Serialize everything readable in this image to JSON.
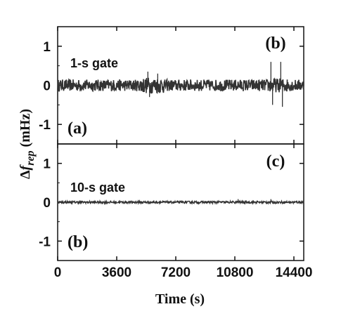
{
  "chart_data": [
    {
      "type": "line",
      "gate_label": "1-s gate",
      "corner_label_right": "(b)",
      "corner_label_left": "(a)",
      "x_range": [
        0,
        15000
      ],
      "ylim": [
        -1.5,
        1.5
      ],
      "yticks": [
        -1,
        0,
        1
      ],
      "ytick_labels": [
        "-1",
        "0",
        "1"
      ],
      "noise_amplitude_mhz": 0.15,
      "spikes": [
        {
          "x": 5500,
          "y": 0.35
        },
        {
          "x": 5600,
          "y": -0.3
        },
        {
          "x": 6100,
          "y": 0.3
        },
        {
          "x": 13000,
          "y": 0.6
        },
        {
          "x": 13100,
          "y": -0.5
        },
        {
          "x": 13600,
          "y": 0.6
        },
        {
          "x": 13700,
          "y": -0.55
        }
      ]
    },
    {
      "type": "line",
      "gate_label": "10-s gate",
      "corner_label_right": "(c)",
      "corner_label_left": "(b)",
      "x_range": [
        0,
        15000
      ],
      "ylim": [
        -1.5,
        1.5
      ],
      "yticks": [
        -1,
        0,
        1
      ],
      "ytick_labels": [
        "-1",
        "0",
        "1"
      ],
      "noise_amplitude_mhz": 0.03,
      "spikes": [
        {
          "x": 11000,
          "y": 0.08
        },
        {
          "x": 13000,
          "y": 0.08
        }
      ]
    }
  ],
  "x_axis": {
    "label": "Time (s)",
    "ticks": [
      0,
      3600,
      7200,
      10800,
      14400
    ],
    "tick_labels": [
      "0",
      "3600",
      "7200",
      "10800",
      "14400"
    ]
  },
  "y_axis": {
    "label_delta": "Δ",
    "label_symbol": "f",
    "label_subscript": "rep",
    "label_unit": " (mHz)"
  },
  "colors": {
    "trace": "#333333",
    "axis": "#111111"
  }
}
